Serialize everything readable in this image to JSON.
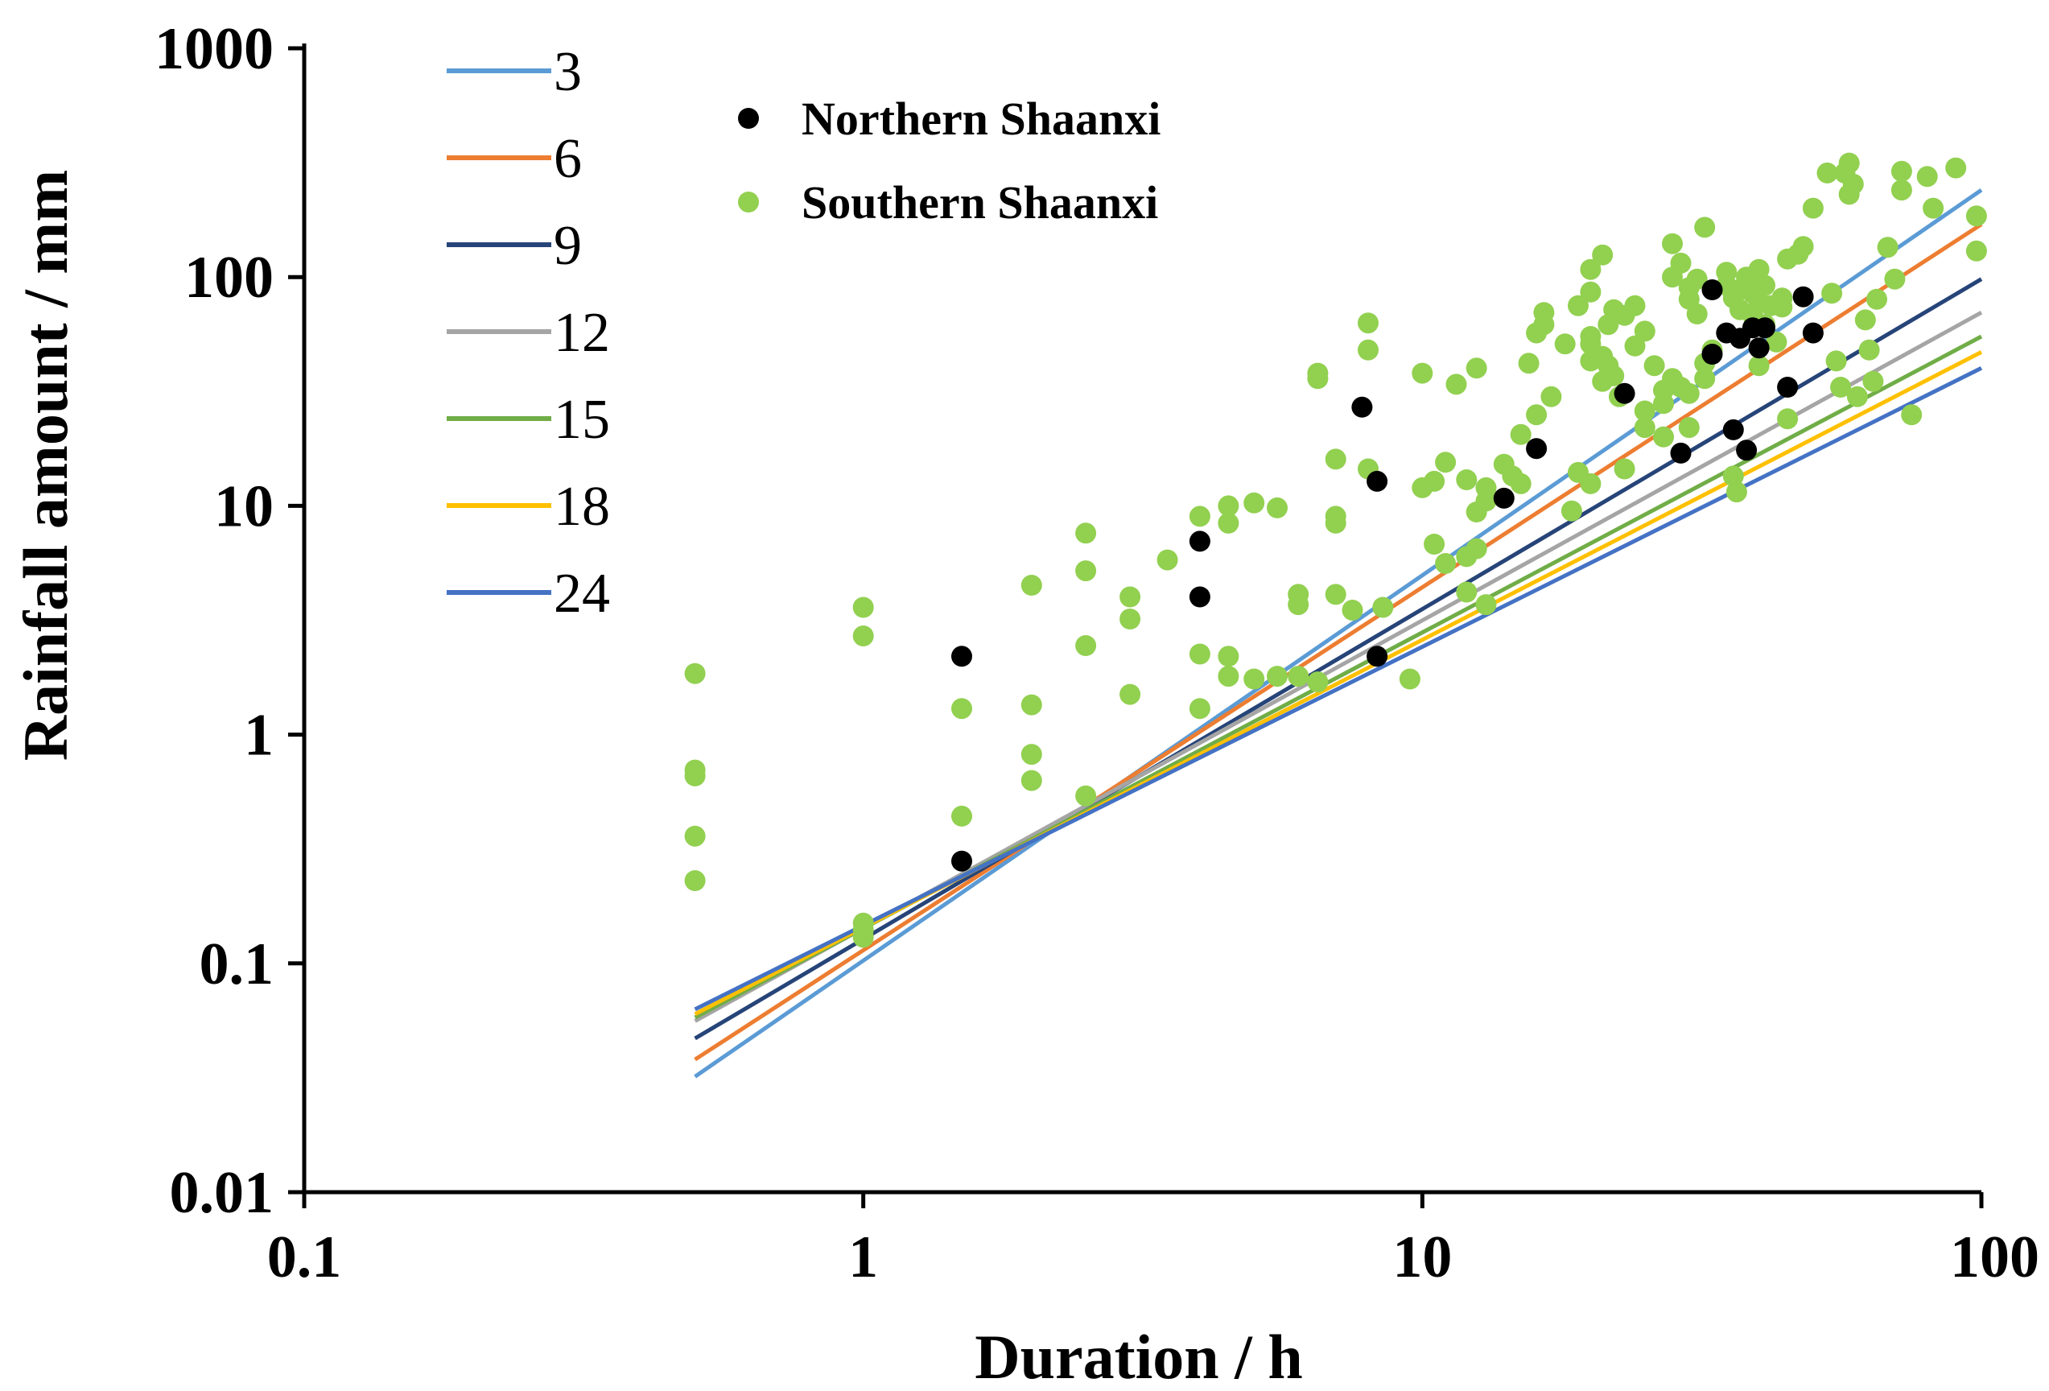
{
  "chart_data": {
    "type": "scatter",
    "title": "",
    "xlabel": "Duration / h",
    "ylabel": "Rainfall amount / mm",
    "xscale": "log",
    "yscale": "log",
    "xlim": [
      0.1,
      100
    ],
    "ylim": [
      0.01,
      1000
    ],
    "xticks": [
      0.1,
      1,
      10,
      100
    ],
    "xtick_labels": [
      "0.1",
      "1",
      "10",
      "100"
    ],
    "yticks": [
      0.01,
      0.1,
      1,
      10,
      100,
      1000
    ],
    "ytick_labels": [
      "0.01",
      "0.1",
      "1",
      "10",
      "100",
      "1000"
    ],
    "grid": false,
    "legend_position": "top-left",
    "lines": [
      {
        "name": "3",
        "color": "#5B9BD5",
        "x": [
          0.5,
          100
        ],
        "y": [
          0.032,
          240
        ]
      },
      {
        "name": "6",
        "color": "#ED7D31",
        "x": [
          0.5,
          100
        ],
        "y": [
          0.038,
          170
        ]
      },
      {
        "name": "9",
        "color": "#264478",
        "x": [
          0.5,
          100
        ],
        "y": [
          0.047,
          98
        ]
      },
      {
        "name": "12",
        "color": "#A5A5A5",
        "x": [
          0.5,
          100
        ],
        "y": [
          0.056,
          70
        ]
      },
      {
        "name": "15",
        "color": "#70AD47",
        "x": [
          0.5,
          100
        ],
        "y": [
          0.058,
          55
        ]
      },
      {
        "name": "18",
        "color": "#FFC000",
        "x": [
          0.5,
          100
        ],
        "y": [
          0.06,
          47
        ]
      },
      {
        "name": "24",
        "color": "#4472C4",
        "x": [
          0.5,
          100
        ],
        "y": [
          0.063,
          40
        ]
      }
    ],
    "series": [
      {
        "name": "Northern Shaanxi",
        "color": "#000000",
        "points": [
          [
            1.5,
            2.2
          ],
          [
            1.5,
            0.28
          ],
          [
            4,
            7
          ],
          [
            4,
            4
          ],
          [
            7.8,
            27
          ],
          [
            8.3,
            12.8
          ],
          [
            8.3,
            2.2
          ],
          [
            14,
            10.8
          ],
          [
            16,
            17.8
          ],
          [
            23,
            31
          ],
          [
            29,
            17
          ],
          [
            33,
            88
          ],
          [
            33,
            46
          ],
          [
            35,
            57
          ],
          [
            36,
            21.5
          ],
          [
            37,
            54
          ],
          [
            38,
            17.5
          ],
          [
            39,
            60
          ],
          [
            40,
            49
          ],
          [
            41,
            60
          ],
          [
            45,
            33
          ],
          [
            48,
            82
          ],
          [
            50,
            57
          ]
        ]
      },
      {
        "name": "Southern Shaanxi",
        "color": "#92D050",
        "points": [
          [
            0.5,
            1.85
          ],
          [
            0.5,
            0.7
          ],
          [
            0.5,
            0.66
          ],
          [
            0.5,
            0.36
          ],
          [
            0.5,
            0.23
          ],
          [
            1,
            3.6
          ],
          [
            1,
            2.7
          ],
          [
            1,
            0.15
          ],
          [
            1,
            0.14
          ],
          [
            1,
            0.13
          ],
          [
            1.5,
            1.3
          ],
          [
            1.5,
            0.44
          ],
          [
            2,
            4.5
          ],
          [
            2,
            1.35
          ],
          [
            2,
            0.82
          ],
          [
            2,
            0.63
          ],
          [
            2.5,
            7.6
          ],
          [
            2.5,
            5.2
          ],
          [
            2.5,
            2.45
          ],
          [
            2.5,
            0.54
          ],
          [
            3,
            4
          ],
          [
            3,
            3.2
          ],
          [
            3,
            1.5
          ],
          [
            3.5,
            5.8
          ],
          [
            4,
            9
          ],
          [
            4,
            2.25
          ],
          [
            4,
            1.3
          ],
          [
            4.5,
            10
          ],
          [
            4.5,
            8.4
          ],
          [
            4.5,
            2.2
          ],
          [
            4.5,
            1.8
          ],
          [
            5,
            10.3
          ],
          [
            5,
            1.75
          ],
          [
            5.5,
            9.8
          ],
          [
            5.5,
            1.8
          ],
          [
            6,
            4.1
          ],
          [
            6,
            3.7
          ],
          [
            6,
            1.8
          ],
          [
            6.5,
            38
          ],
          [
            6.5,
            36
          ],
          [
            6.5,
            1.7
          ],
          [
            7,
            16
          ],
          [
            7,
            9
          ],
          [
            7,
            8.4
          ],
          [
            7,
            4.1
          ],
          [
            7.5,
            3.5
          ],
          [
            8,
            63
          ],
          [
            8,
            48
          ],
          [
            8,
            14.5
          ],
          [
            8.5,
            3.6
          ],
          [
            9.5,
            1.75
          ],
          [
            10,
            38
          ],
          [
            10,
            12
          ],
          [
            10.5,
            6.8
          ],
          [
            10.5,
            12.8
          ],
          [
            11,
            15.5
          ],
          [
            11,
            5.6
          ],
          [
            11.5,
            34
          ],
          [
            12,
            13
          ],
          [
            12,
            6
          ],
          [
            12,
            4.2
          ],
          [
            12.5,
            40
          ],
          [
            12.5,
            9.4
          ],
          [
            12.5,
            6.5
          ],
          [
            13,
            12
          ],
          [
            13,
            10.5
          ],
          [
            13,
            3.7
          ],
          [
            14,
            15.2
          ],
          [
            14.5,
            13.5
          ],
          [
            15,
            20.5
          ],
          [
            15,
            12.5
          ],
          [
            15.5,
            42
          ],
          [
            16,
            57
          ],
          [
            16,
            25
          ],
          [
            16.5,
            70
          ],
          [
            16.5,
            62
          ],
          [
            17,
            30
          ],
          [
            18,
            51
          ],
          [
            18.5,
            9.5
          ],
          [
            19,
            75
          ],
          [
            19,
            14
          ],
          [
            20,
            108
          ],
          [
            20,
            86
          ],
          [
            20,
            55
          ],
          [
            20,
            51
          ],
          [
            20,
            43
          ],
          [
            20,
            12.5
          ],
          [
            21,
            125
          ],
          [
            21,
            45
          ],
          [
            21,
            35
          ],
          [
            21.5,
            62
          ],
          [
            21.5,
            41
          ],
          [
            22,
            72
          ],
          [
            22,
            37
          ],
          [
            22.5,
            30
          ],
          [
            23,
            68
          ],
          [
            23,
            14.5
          ],
          [
            24,
            75
          ],
          [
            24,
            50
          ],
          [
            25,
            58
          ],
          [
            25,
            26
          ],
          [
            25,
            22
          ],
          [
            26,
            41
          ],
          [
            27,
            32
          ],
          [
            27,
            28
          ],
          [
            27,
            20
          ],
          [
            28,
            140
          ],
          [
            28,
            100
          ],
          [
            28,
            36
          ],
          [
            29,
            115
          ],
          [
            29,
            33
          ],
          [
            30,
            90
          ],
          [
            30,
            80
          ],
          [
            30,
            31
          ],
          [
            30,
            22
          ],
          [
            31,
            98
          ],
          [
            31,
            69
          ],
          [
            32,
            165
          ],
          [
            32,
            42
          ],
          [
            32,
            36
          ],
          [
            33,
            48
          ],
          [
            35,
            105
          ],
          [
            35,
            92
          ],
          [
            36,
            81
          ],
          [
            36,
            13.5
          ],
          [
            36.5,
            11.5
          ],
          [
            37,
            88
          ],
          [
            37,
            72
          ],
          [
            38,
            100
          ],
          [
            38,
            96
          ],
          [
            39,
            85
          ],
          [
            39,
            68
          ],
          [
            40,
            108
          ],
          [
            40,
            78
          ],
          [
            40,
            41
          ],
          [
            41,
            92
          ],
          [
            41,
            62
          ],
          [
            42,
            75
          ],
          [
            43,
            52
          ],
          [
            44,
            81
          ],
          [
            44,
            74
          ],
          [
            45,
            120
          ],
          [
            45,
            24
          ],
          [
            47,
            126
          ],
          [
            48,
            136
          ],
          [
            50,
            200
          ],
          [
            53,
            285
          ],
          [
            54,
            85
          ],
          [
            55,
            43
          ],
          [
            56,
            33
          ],
          [
            57,
            285
          ],
          [
            58,
            315
          ],
          [
            58,
            230
          ],
          [
            59,
            255
          ],
          [
            60,
            30
          ],
          [
            62,
            65
          ],
          [
            63,
            48
          ],
          [
            64,
            35
          ],
          [
            65,
            80
          ],
          [
            68,
            135
          ],
          [
            70,
            98
          ],
          [
            72,
            290
          ],
          [
            72,
            240
          ],
          [
            75,
            25
          ],
          [
            80,
            275
          ],
          [
            82,
            200
          ],
          [
            90,
            300
          ],
          [
            98,
            185
          ],
          [
            98,
            130
          ]
        ]
      }
    ]
  }
}
